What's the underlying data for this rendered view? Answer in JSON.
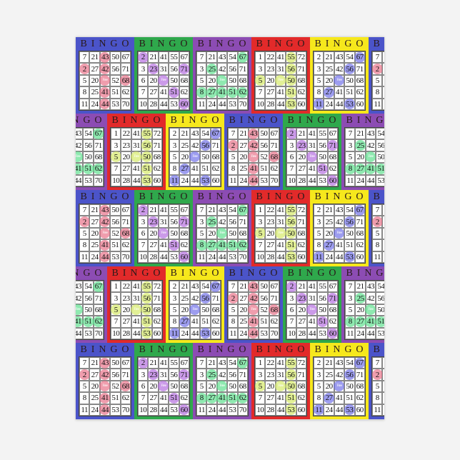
{
  "header_letters": [
    "B",
    "I",
    "N",
    "G",
    "O"
  ],
  "free_label": "Free",
  "cards": [
    {
      "name": "blue",
      "bg": "#4b54c9",
      "mark": "#e8738a",
      "rows": [
        [
          "7",
          "21",
          "43",
          "50",
          "67"
        ],
        [
          "2",
          "27",
          "42",
          "56",
          "71"
        ],
        [
          "5",
          "20",
          "Free",
          "52",
          "68"
        ],
        [
          "8",
          "25",
          "41",
          "51",
          "62"
        ],
        [
          "11",
          "24",
          "44",
          "53",
          "70"
        ]
      ],
      "marked": [
        [
          0,
          2
        ],
        [
          1,
          0
        ],
        [
          1,
          2
        ],
        [
          2,
          2
        ],
        [
          2,
          4
        ],
        [
          3,
          2
        ],
        [
          4,
          2
        ]
      ]
    },
    {
      "name": "green",
      "bg": "#2fa84c",
      "mark": "#b56fe0",
      "rows": [
        [
          "2",
          "21",
          "41",
          "55",
          "67"
        ],
        [
          "3",
          "23",
          "31",
          "56",
          "71"
        ],
        [
          "6",
          "20",
          "Free",
          "50",
          "68"
        ],
        [
          "7",
          "27",
          "41",
          "51",
          "62"
        ],
        [
          "10",
          "28",
          "44",
          "53",
          "60"
        ]
      ],
      "marked": [
        [
          0,
          0
        ],
        [
          1,
          1
        ],
        [
          1,
          4
        ],
        [
          2,
          2
        ],
        [
          3,
          3
        ],
        [
          4,
          4
        ]
      ]
    },
    {
      "name": "purple",
      "bg": "#8c4cb3",
      "mark": "#5fe08f",
      "rows": [
        [
          "7",
          "21",
          "43",
          "54",
          "67"
        ],
        [
          "3",
          "25",
          "42",
          "56",
          "71"
        ],
        [
          "5",
          "20",
          "Free",
          "50",
          "68"
        ],
        [
          "8",
          "27",
          "41",
          "51",
          "62"
        ],
        [
          "11",
          "24",
          "44",
          "53",
          "70"
        ]
      ],
      "marked": [
        [
          0,
          4
        ],
        [
          1,
          1
        ],
        [
          2,
          2
        ],
        [
          3,
          0
        ],
        [
          3,
          1
        ],
        [
          3,
          2
        ],
        [
          3,
          3
        ],
        [
          3,
          4
        ]
      ]
    },
    {
      "name": "red",
      "bg": "#e22a2a",
      "mark": "#d6ea6a",
      "rows": [
        [
          "1",
          "22",
          "41",
          "55",
          "72"
        ],
        [
          "3",
          "23",
          "31",
          "56",
          "71"
        ],
        [
          "5",
          "20",
          "Free",
          "50",
          "68"
        ],
        [
          "7",
          "27",
          "41",
          "51",
          "62"
        ],
        [
          "10",
          "28",
          "44",
          "53",
          "60"
        ]
      ],
      "marked": [
        [
          0,
          3
        ],
        [
          1,
          3
        ],
        [
          2,
          0
        ],
        [
          2,
          2
        ],
        [
          2,
          3
        ],
        [
          3,
          3
        ],
        [
          4,
          3
        ]
      ]
    },
    {
      "name": "yellow",
      "bg": "#f6e81c",
      "mark": "#7373e8",
      "rows": [
        [
          "2",
          "21",
          "43",
          "54",
          "67"
        ],
        [
          "3",
          "25",
          "42",
          "56",
          "71"
        ],
        [
          "5",
          "20",
          "Free",
          "50",
          "68"
        ],
        [
          "8",
          "27",
          "41",
          "51",
          "62"
        ],
        [
          "11",
          "24",
          "44",
          "53",
          "60"
        ]
      ],
      "marked": [
        [
          0,
          4
        ],
        [
          1,
          3
        ],
        [
          2,
          2
        ],
        [
          3,
          1
        ],
        [
          4,
          0
        ],
        [
          4,
          3
        ]
      ]
    }
  ]
}
